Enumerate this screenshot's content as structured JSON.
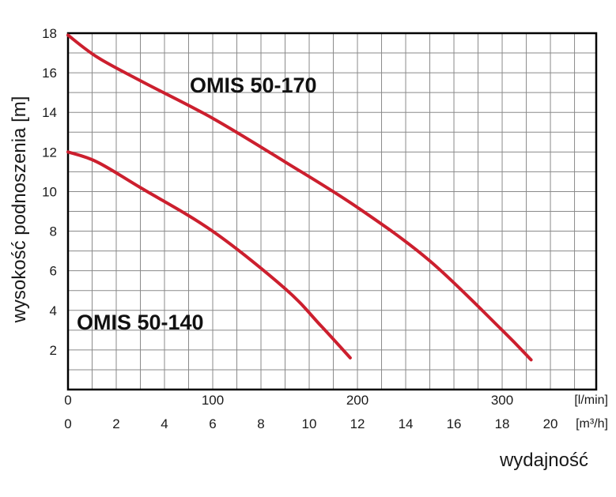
{
  "chart_data": {
    "type": "line",
    "title": "",
    "ylabel": "wysokość podnoszenia [m]",
    "xlabel": "wydajność",
    "ylim": [
      0,
      18
    ],
    "yticks": [
      2,
      4,
      6,
      8,
      10,
      12,
      14,
      16,
      18
    ],
    "x_axis_lmin": {
      "unit": "[l/min]",
      "range": [
        0,
        365
      ],
      "ticks": [
        0,
        100,
        200,
        300
      ]
    },
    "x_axis_m3h": {
      "unit": "[m³/h]",
      "range": [
        0,
        21.9
      ],
      "ticks": [
        0,
        2,
        4,
        6,
        8,
        10,
        12,
        14,
        16,
        18,
        20
      ]
    },
    "grid": true,
    "line_color": "#cc1f2e",
    "series": [
      {
        "name": "OMIS 50-170",
        "x": [
          0,
          20,
          50,
          100,
          150,
          200,
          250,
          300,
          320
        ],
        "y": [
          17.9,
          16.8,
          15.6,
          13.7,
          11.5,
          9.2,
          6.5,
          3.0,
          1.5
        ]
      },
      {
        "name": "OMIS 50-140",
        "x": [
          0,
          20,
          50,
          100,
          150,
          175,
          195
        ],
        "y": [
          12.0,
          11.5,
          10.2,
          8.0,
          5.1,
          3.2,
          1.6
        ]
      }
    ]
  }
}
